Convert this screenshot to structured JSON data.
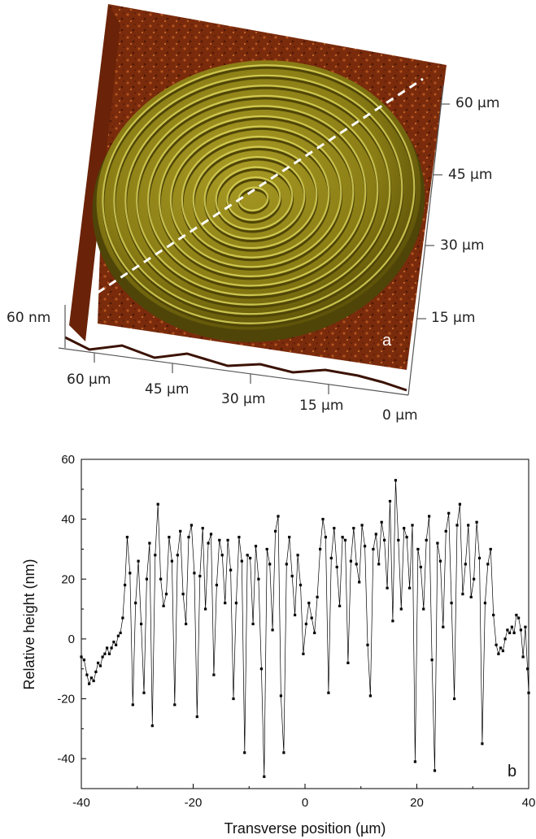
{
  "figure_a": {
    "panel_label": "a",
    "z_label": "60 nm",
    "x_axis_labels": [
      "60 µm",
      "45 µm",
      "30 µm",
      "15 µm",
      "0 µm"
    ],
    "y_axis_labels": [
      "60 µm",
      "45 µm",
      "30 µm",
      "15 µm"
    ],
    "colors": {
      "substrate": "#7a2b0c",
      "disk": "#8f8418",
      "ridge_light": "#d8d25a",
      "ridge_dark": "#4f4508",
      "scan_line": "#ffffff"
    }
  },
  "chart_data": {
    "type": "line",
    "panel_label": "b",
    "xlabel": "Transverse position (µm)",
    "ylabel": "Relative height (nm)",
    "xlim": [
      -40,
      40
    ],
    "ylim": [
      -50,
      60
    ],
    "xticks": [
      -40,
      -20,
      0,
      20,
      40
    ],
    "yticks": [
      -40,
      -20,
      0,
      20,
      40,
      60
    ],
    "x_tick_labels": [
      "-40",
      "-20",
      "0",
      "20",
      "40"
    ],
    "y_tick_labels": [
      "-40",
      "-20",
      "0",
      "20",
      "40",
      "60"
    ],
    "grid": false,
    "series": [
      {
        "markers": "square",
        "color": "#000000",
        "points": [
          [
            -40.0,
            -6
          ],
          [
            -39.5,
            -7
          ],
          [
            -39.0,
            -12
          ],
          [
            -38.6,
            -15
          ],
          [
            -38.2,
            -13
          ],
          [
            -37.8,
            -14
          ],
          [
            -37.4,
            -11
          ],
          [
            -37.0,
            -8
          ],
          [
            -36.6,
            -9
          ],
          [
            -36.2,
            -6
          ],
          [
            -35.8,
            -5
          ],
          [
            -35.4,
            -3
          ],
          [
            -35.0,
            -5
          ],
          [
            -34.6,
            -3
          ],
          [
            -34.2,
            -1
          ],
          [
            -33.8,
            -2
          ],
          [
            -33.4,
            1
          ],
          [
            -33.0,
            2
          ],
          [
            -32.6,
            7
          ],
          [
            -32.2,
            18
          ],
          [
            -31.8,
            34
          ],
          [
            -31.3,
            22
          ],
          [
            -30.8,
            -22
          ],
          [
            -30.3,
            12
          ],
          [
            -29.8,
            26
          ],
          [
            -29.3,
            5
          ],
          [
            -28.8,
            -18
          ],
          [
            -28.3,
            20
          ],
          [
            -27.8,
            32
          ],
          [
            -27.3,
            -29
          ],
          [
            -26.8,
            28
          ],
          [
            -26.3,
            45
          ],
          [
            -25.8,
            20
          ],
          [
            -25.3,
            11
          ],
          [
            -24.8,
            15
          ],
          [
            -24.3,
            34
          ],
          [
            -23.8,
            26
          ],
          [
            -23.3,
            -22
          ],
          [
            -22.8,
            28
          ],
          [
            -22.3,
            36
          ],
          [
            -21.8,
            15
          ],
          [
            -21.3,
            5
          ],
          [
            -20.8,
            34
          ],
          [
            -20.3,
            38
          ],
          [
            -19.8,
            22
          ],
          [
            -19.3,
            -26
          ],
          [
            -18.8,
            21
          ],
          [
            -18.3,
            37
          ],
          [
            -17.8,
            10
          ],
          [
            -17.3,
            32
          ],
          [
            -16.8,
            35
          ],
          [
            -16.3,
            -12
          ],
          [
            -15.8,
            18
          ],
          [
            -15.3,
            33
          ],
          [
            -14.8,
            28
          ],
          [
            -14.3,
            12
          ],
          [
            -13.8,
            33
          ],
          [
            -13.3,
            23
          ],
          [
            -12.8,
            -20
          ],
          [
            -12.3,
            12
          ],
          [
            -11.8,
            34
          ],
          [
            -11.3,
            26
          ],
          [
            -10.8,
            -38
          ],
          [
            -10.3,
            28
          ],
          [
            -9.8,
            27
          ],
          [
            -9.3,
            5
          ],
          [
            -8.8,
            31
          ],
          [
            -8.3,
            20
          ],
          [
            -7.8,
            -10
          ],
          [
            -7.3,
            -46
          ],
          [
            -6.8,
            30
          ],
          [
            -6.3,
            25
          ],
          [
            -5.8,
            3
          ],
          [
            -5.3,
            36
          ],
          [
            -4.8,
            41
          ],
          [
            -4.3,
            -19
          ],
          [
            -3.8,
            -38
          ],
          [
            -3.3,
            25
          ],
          [
            -2.8,
            34
          ],
          [
            -2.3,
            21
          ],
          [
            -1.8,
            8
          ],
          [
            -1.3,
            28
          ],
          [
            -0.8,
            18
          ],
          [
            -0.3,
            -5
          ],
          [
            0.2,
            5
          ],
          [
            0.7,
            12
          ],
          [
            1.2,
            7
          ],
          [
            1.7,
            2
          ],
          [
            2.2,
            14
          ],
          [
            2.7,
            30
          ],
          [
            3.2,
            40
          ],
          [
            3.7,
            34
          ],
          [
            4.2,
            -18
          ],
          [
            4.7,
            27
          ],
          [
            5.2,
            37
          ],
          [
            5.7,
            24
          ],
          [
            6.2,
            11
          ],
          [
            6.7,
            34
          ],
          [
            7.2,
            33
          ],
          [
            7.7,
            -8
          ],
          [
            8.2,
            26
          ],
          [
            8.7,
            37
          ],
          [
            9.2,
            25
          ],
          [
            9.7,
            19
          ],
          [
            10.2,
            38
          ],
          [
            10.7,
            31
          ],
          [
            11.2,
            -2
          ],
          [
            11.7,
            -19
          ],
          [
            12.2,
            30
          ],
          [
            12.7,
            35
          ],
          [
            13.2,
            25
          ],
          [
            13.7,
            39
          ],
          [
            14.2,
            33
          ],
          [
            14.7,
            17
          ],
          [
            15.2,
            46
          ],
          [
            15.7,
            6
          ],
          [
            16.2,
            53
          ],
          [
            16.7,
            33
          ],
          [
            17.2,
            10
          ],
          [
            17.7,
            37
          ],
          [
            18.2,
            34
          ],
          [
            18.7,
            17
          ],
          [
            19.2,
            38
          ],
          [
            19.7,
            -41
          ],
          [
            20.2,
            30
          ],
          [
            20.7,
            24
          ],
          [
            21.2,
            10
          ],
          [
            21.7,
            33
          ],
          [
            22.2,
            41
          ],
          [
            22.7,
            -7
          ],
          [
            23.2,
            -44
          ],
          [
            23.7,
            32
          ],
          [
            24.2,
            26
          ],
          [
            24.7,
            4
          ],
          [
            25.2,
            36
          ],
          [
            25.7,
            42
          ],
          [
            26.2,
            12
          ],
          [
            26.7,
            -20
          ],
          [
            27.2,
            38
          ],
          [
            27.7,
            45
          ],
          [
            28.2,
            15
          ],
          [
            28.7,
            25
          ],
          [
            29.2,
            38
          ],
          [
            29.7,
            14
          ],
          [
            30.2,
            20
          ],
          [
            30.7,
            39
          ],
          [
            31.2,
            27
          ],
          [
            31.7,
            -35
          ],
          [
            32.2,
            12
          ],
          [
            32.7,
            25
          ],
          [
            33.2,
            30
          ],
          [
            33.7,
            8
          ],
          [
            34.2,
            -2
          ],
          [
            34.6,
            -5
          ],
          [
            35.0,
            -3
          ],
          [
            35.4,
            -4
          ],
          [
            35.8,
            0
          ],
          [
            36.2,
            3
          ],
          [
            36.6,
            2
          ],
          [
            37.0,
            4
          ],
          [
            37.4,
            2
          ],
          [
            37.8,
            8
          ],
          [
            38.2,
            7
          ],
          [
            38.6,
            3
          ],
          [
            39.0,
            -6
          ],
          [
            39.4,
            4
          ],
          [
            39.8,
            -10
          ],
          [
            40.0,
            -18
          ]
        ]
      }
    ]
  }
}
